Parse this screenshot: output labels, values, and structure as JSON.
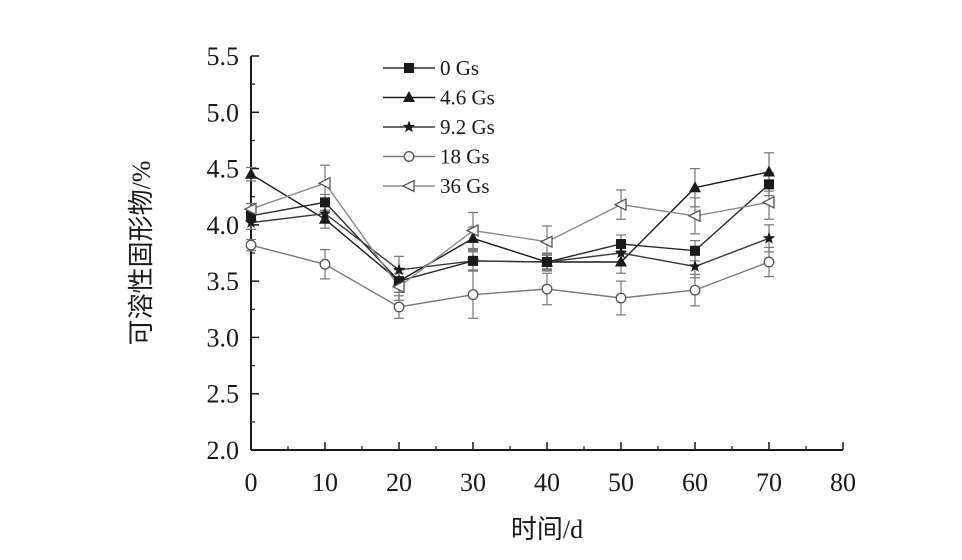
{
  "chart_data": {
    "type": "line",
    "title": "",
    "xlabel": "时间/d",
    "ylabel": "可溶性固形物/%",
    "xlim": [
      0,
      80
    ],
    "ylim": [
      2.0,
      5.5
    ],
    "x_ticks": [
      "0",
      "10",
      "20",
      "30",
      "40",
      "50",
      "60",
      "70",
      "80"
    ],
    "y_ticks": [
      "2.0",
      "2.5",
      "3.0",
      "3.5",
      "4.0",
      "4.5",
      "5.0",
      "5.5"
    ],
    "x": [
      0,
      10,
      20,
      30,
      40,
      50,
      60,
      70
    ],
    "grid": false,
    "legend_position": "top-center",
    "series": [
      {
        "name": "0 Gs",
        "marker": "square-filled",
        "values": [
          4.08,
          4.2,
          3.5,
          3.68,
          3.67,
          3.83,
          3.77,
          4.36
        ],
        "errors": [
          0.05,
          0.07,
          0.1,
          0.08,
          0.06,
          0.08,
          0.09,
          0.1
        ]
      },
      {
        "name": "4.6 Gs",
        "marker": "triangle-up-filled",
        "values": [
          4.45,
          4.05,
          3.5,
          3.88,
          3.67,
          3.67,
          4.33,
          4.47
        ],
        "errors": [
          0.06,
          0.08,
          0.1,
          0.1,
          0.08,
          0.1,
          0.17,
          0.17
        ]
      },
      {
        "name": "9.2 Gs",
        "marker": "star-filled",
        "values": [
          4.02,
          4.1,
          3.6,
          3.68,
          3.67,
          3.75,
          3.63,
          3.88
        ],
        "errors": [
          0.06,
          0.07,
          0.12,
          0.09,
          0.07,
          0.1,
          0.1,
          0.12
        ]
      },
      {
        "name": "18 Gs",
        "marker": "circle-open",
        "values": [
          3.82,
          3.65,
          3.27,
          3.38,
          3.43,
          3.35,
          3.42,
          3.67
        ],
        "errors": [
          0.05,
          0.13,
          0.1,
          0.21,
          0.14,
          0.15,
          0.14,
          0.13
        ]
      },
      {
        "name": "36 Gs",
        "marker": "triangle-left-open",
        "values": [
          4.14,
          4.37,
          3.45,
          3.95,
          3.85,
          4.18,
          4.08,
          4.2
        ],
        "errors": [
          0.05,
          0.16,
          0.12,
          0.16,
          0.14,
          0.13,
          0.16,
          0.15
        ]
      }
    ]
  }
}
